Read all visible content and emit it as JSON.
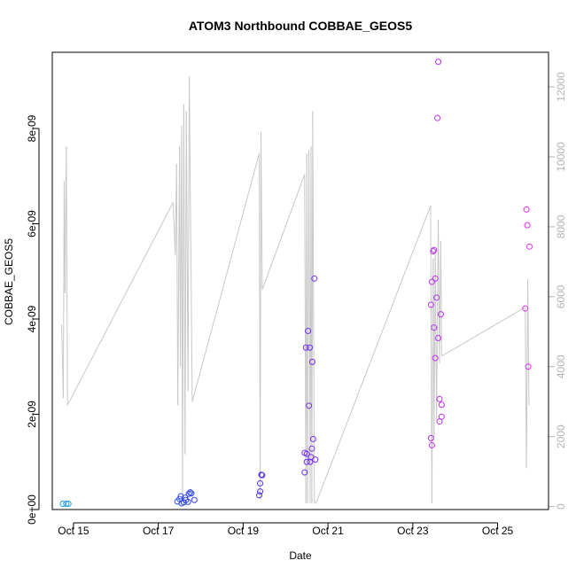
{
  "chart_data": {
    "type": "scatter",
    "title": "ATOM3 Northbound COBBAE_GEOS5",
    "xlabel": "Date",
    "ylabel": "COBBAE_GEOS5",
    "x_unit": "day of October 2016 (fractional)",
    "xlim": [
      14.5,
      26.2
    ],
    "ylim": [
      0,
      9.6e-09
    ],
    "x_ticks": [
      {
        "value": 15,
        "label": "Oct 15"
      },
      {
        "value": 17,
        "label": "Oct 17"
      },
      {
        "value": 19,
        "label": "Oct 19"
      },
      {
        "value": 21,
        "label": "Oct 21"
      },
      {
        "value": 23,
        "label": "Oct 23"
      },
      {
        "value": 25,
        "label": "Oct 25"
      }
    ],
    "y_ticks": [
      {
        "value": 0,
        "label": "0e+00"
      },
      {
        "value": 2e-09,
        "label": "2e-09"
      },
      {
        "value": 4e-09,
        "label": "4e-09"
      },
      {
        "value": 6e-09,
        "label": "6e-09"
      },
      {
        "value": 8e-09,
        "label": "8e-09"
      }
    ],
    "y2_ticks": [
      {
        "value": 0,
        "label": "0"
      },
      {
        "value": 2000,
        "label": "2000"
      },
      {
        "value": 4000,
        "label": "4000"
      },
      {
        "value": 6000,
        "label": "6000"
      },
      {
        "value": 8000,
        "label": "8000"
      },
      {
        "value": 10000,
        "label": "10000"
      },
      {
        "value": 12000,
        "label": "12000"
      }
    ],
    "y2_range": [
      -85,
      12990
    ],
    "grid": false,
    "series": [
      {
        "kind": "points",
        "color_scale": [
          "#1aa3e8",
          "#3a2ff0",
          "#9b2ff0",
          "#e52ff0"
        ],
        "points": [
          {
            "x": 14.75,
            "y": 1.2e-10
          },
          {
            "x": 14.83,
            "y": 1.2e-10
          },
          {
            "x": 14.88,
            "y": 1.2e-10
          },
          {
            "x": 17.45,
            "y": 1.7e-10
          },
          {
            "x": 17.5,
            "y": 2.2e-10
          },
          {
            "x": 17.53,
            "y": 2.8e-10
          },
          {
            "x": 17.55,
            "y": 1.3e-10
          },
          {
            "x": 17.6,
            "y": 1.5e-10
          },
          {
            "x": 17.63,
            "y": 2.5e-10
          },
          {
            "x": 17.65,
            "y": 2e-10
          },
          {
            "x": 17.7,
            "y": 1.6e-10
          },
          {
            "x": 17.72,
            "y": 3.3e-10
          },
          {
            "x": 17.75,
            "y": 3.6e-10
          },
          {
            "x": 17.78,
            "y": 3.4e-10
          },
          {
            "x": 17.85,
            "y": 2e-10
          },
          {
            "x": 19.38,
            "y": 3e-10
          },
          {
            "x": 19.4,
            "y": 5.5e-10
          },
          {
            "x": 19.43,
            "y": 7.3e-10
          },
          {
            "x": 19.45,
            "y": 7.2e-10
          },
          {
            "x": 19.4,
            "y": 3.8e-10
          },
          {
            "x": 20.45,
            "y": 1.19e-09
          },
          {
            "x": 20.48,
            "y": 3.4e-09
          },
          {
            "x": 20.5,
            "y": 1.17e-09
          },
          {
            "x": 20.5,
            "y": 1e-09
          },
          {
            "x": 20.53,
            "y": 3.75e-09
          },
          {
            "x": 20.55,
            "y": 2.18e-09
          },
          {
            "x": 20.57,
            "y": 3.4e-09
          },
          {
            "x": 20.58,
            "y": 1e-09
          },
          {
            "x": 20.6,
            "y": 1.1e-09
          },
          {
            "x": 20.62,
            "y": 1.28e-09
          },
          {
            "x": 20.63,
            "y": 3.1e-09
          },
          {
            "x": 20.65,
            "y": 1.48e-09
          },
          {
            "x": 20.68,
            "y": 4.85e-09
          },
          {
            "x": 20.7,
            "y": 1.05e-09
          },
          {
            "x": 20.45,
            "y": 7.8e-10
          },
          {
            "x": 23.43,
            "y": 4.3e-09
          },
          {
            "x": 23.43,
            "y": 1.5e-09
          },
          {
            "x": 23.45,
            "y": 1.35e-09
          },
          {
            "x": 23.45,
            "y": 4.78e-09
          },
          {
            "x": 23.48,
            "y": 5.42e-09
          },
          {
            "x": 23.5,
            "y": 3.82e-09
          },
          {
            "x": 23.5,
            "y": 5.45e-09
          },
          {
            "x": 23.53,
            "y": 3.18e-09
          },
          {
            "x": 23.53,
            "y": 4.85e-09
          },
          {
            "x": 23.56,
            "y": 4.45e-09
          },
          {
            "x": 23.58,
            "y": 8.22e-09
          },
          {
            "x": 23.6,
            "y": 3.6e-09
          },
          {
            "x": 23.6,
            "y": 9.4e-09
          },
          {
            "x": 23.63,
            "y": 1.85e-09
          },
          {
            "x": 23.63,
            "y": 2.32e-09
          },
          {
            "x": 23.66,
            "y": 4.1e-09
          },
          {
            "x": 23.68,
            "y": 1.95e-09
          },
          {
            "x": 23.68,
            "y": 2.2e-09
          },
          {
            "x": 25.65,
            "y": 4.22e-09
          },
          {
            "x": 25.68,
            "y": 6.3e-09
          },
          {
            "x": 25.7,
            "y": 5.97e-09
          },
          {
            "x": 25.72,
            "y": 3e-09
          },
          {
            "x": 25.75,
            "y": 5.52e-09
          }
        ]
      },
      {
        "kind": "line",
        "axis": "right",
        "color": "#c8c8c8",
        "points": [
          {
            "x": 14.72,
            "y": 5200
          },
          {
            "x": 14.76,
            "y": 3100
          },
          {
            "x": 14.78,
            "y": 9300
          },
          {
            "x": 14.8,
            "y": 6100
          },
          {
            "x": 14.83,
            "y": 10300
          },
          {
            "x": 14.86,
            "y": 2900
          },
          {
            "x": 17.35,
            "y": 8700
          },
          {
            "x": 17.4,
            "y": 7200
          },
          {
            "x": 17.43,
            "y": 9800
          },
          {
            "x": 17.46,
            "y": 2900
          },
          {
            "x": 17.5,
            "y": 10300
          },
          {
            "x": 17.52,
            "y": 4000
          },
          {
            "x": 17.55,
            "y": 10900
          },
          {
            "x": 17.57,
            "y": 100
          },
          {
            "x": 17.6,
            "y": 11500
          },
          {
            "x": 17.63,
            "y": 1500
          },
          {
            "x": 17.66,
            "y": 11300
          },
          {
            "x": 17.7,
            "y": 3300
          },
          {
            "x": 17.73,
            "y": 12300
          },
          {
            "x": 17.8,
            "y": 3000
          },
          {
            "x": 19.38,
            "y": 10100
          },
          {
            "x": 19.4,
            "y": 200
          },
          {
            "x": 19.42,
            "y": 10700
          },
          {
            "x": 19.45,
            "y": 6200
          },
          {
            "x": 20.45,
            "y": 9500
          },
          {
            "x": 20.48,
            "y": 100
          },
          {
            "x": 20.5,
            "y": 10100
          },
          {
            "x": 20.52,
            "y": 100
          },
          {
            "x": 20.55,
            "y": 10200
          },
          {
            "x": 20.58,
            "y": 100
          },
          {
            "x": 20.6,
            "y": 10300
          },
          {
            "x": 20.62,
            "y": 100
          },
          {
            "x": 20.64,
            "y": 11300
          },
          {
            "x": 20.68,
            "y": 100
          },
          {
            "x": 20.72,
            "y": 100
          },
          {
            "x": 23.42,
            "y": 8600
          },
          {
            "x": 23.45,
            "y": 100
          },
          {
            "x": 23.48,
            "y": 7100
          },
          {
            "x": 23.5,
            "y": 2000
          },
          {
            "x": 23.53,
            "y": 7200
          },
          {
            "x": 23.56,
            "y": 2500
          },
          {
            "x": 23.6,
            "y": 8200
          },
          {
            "x": 23.63,
            "y": 4100
          },
          {
            "x": 23.66,
            "y": 7600
          },
          {
            "x": 23.68,
            "y": 4300
          },
          {
            "x": 25.65,
            "y": 5700
          },
          {
            "x": 25.68,
            "y": 1100
          },
          {
            "x": 25.71,
            "y": 6500
          },
          {
            "x": 25.74,
            "y": 2900
          }
        ]
      }
    ]
  }
}
